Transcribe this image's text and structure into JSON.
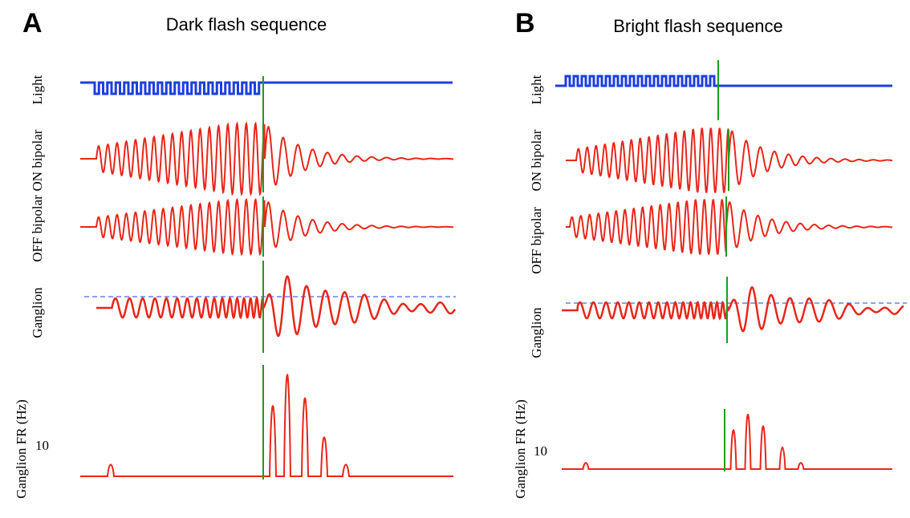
{
  "panels": [
    {
      "letter": "A",
      "title": "Dark flash sequence",
      "rows": [
        "Light",
        "ON bipolar",
        "OFF bipolar",
        "Ganglion",
        "Ganglion FR (Hz)"
      ],
      "fr_tick": 10
    },
    {
      "letter": "B",
      "title": "Bright flash sequence",
      "rows": [
        "Light",
        "ON bipolar",
        "OFF bipolar",
        "Ganglion",
        "Ganglion FR (Hz)"
      ],
      "fr_tick": 10
    }
  ]
}
